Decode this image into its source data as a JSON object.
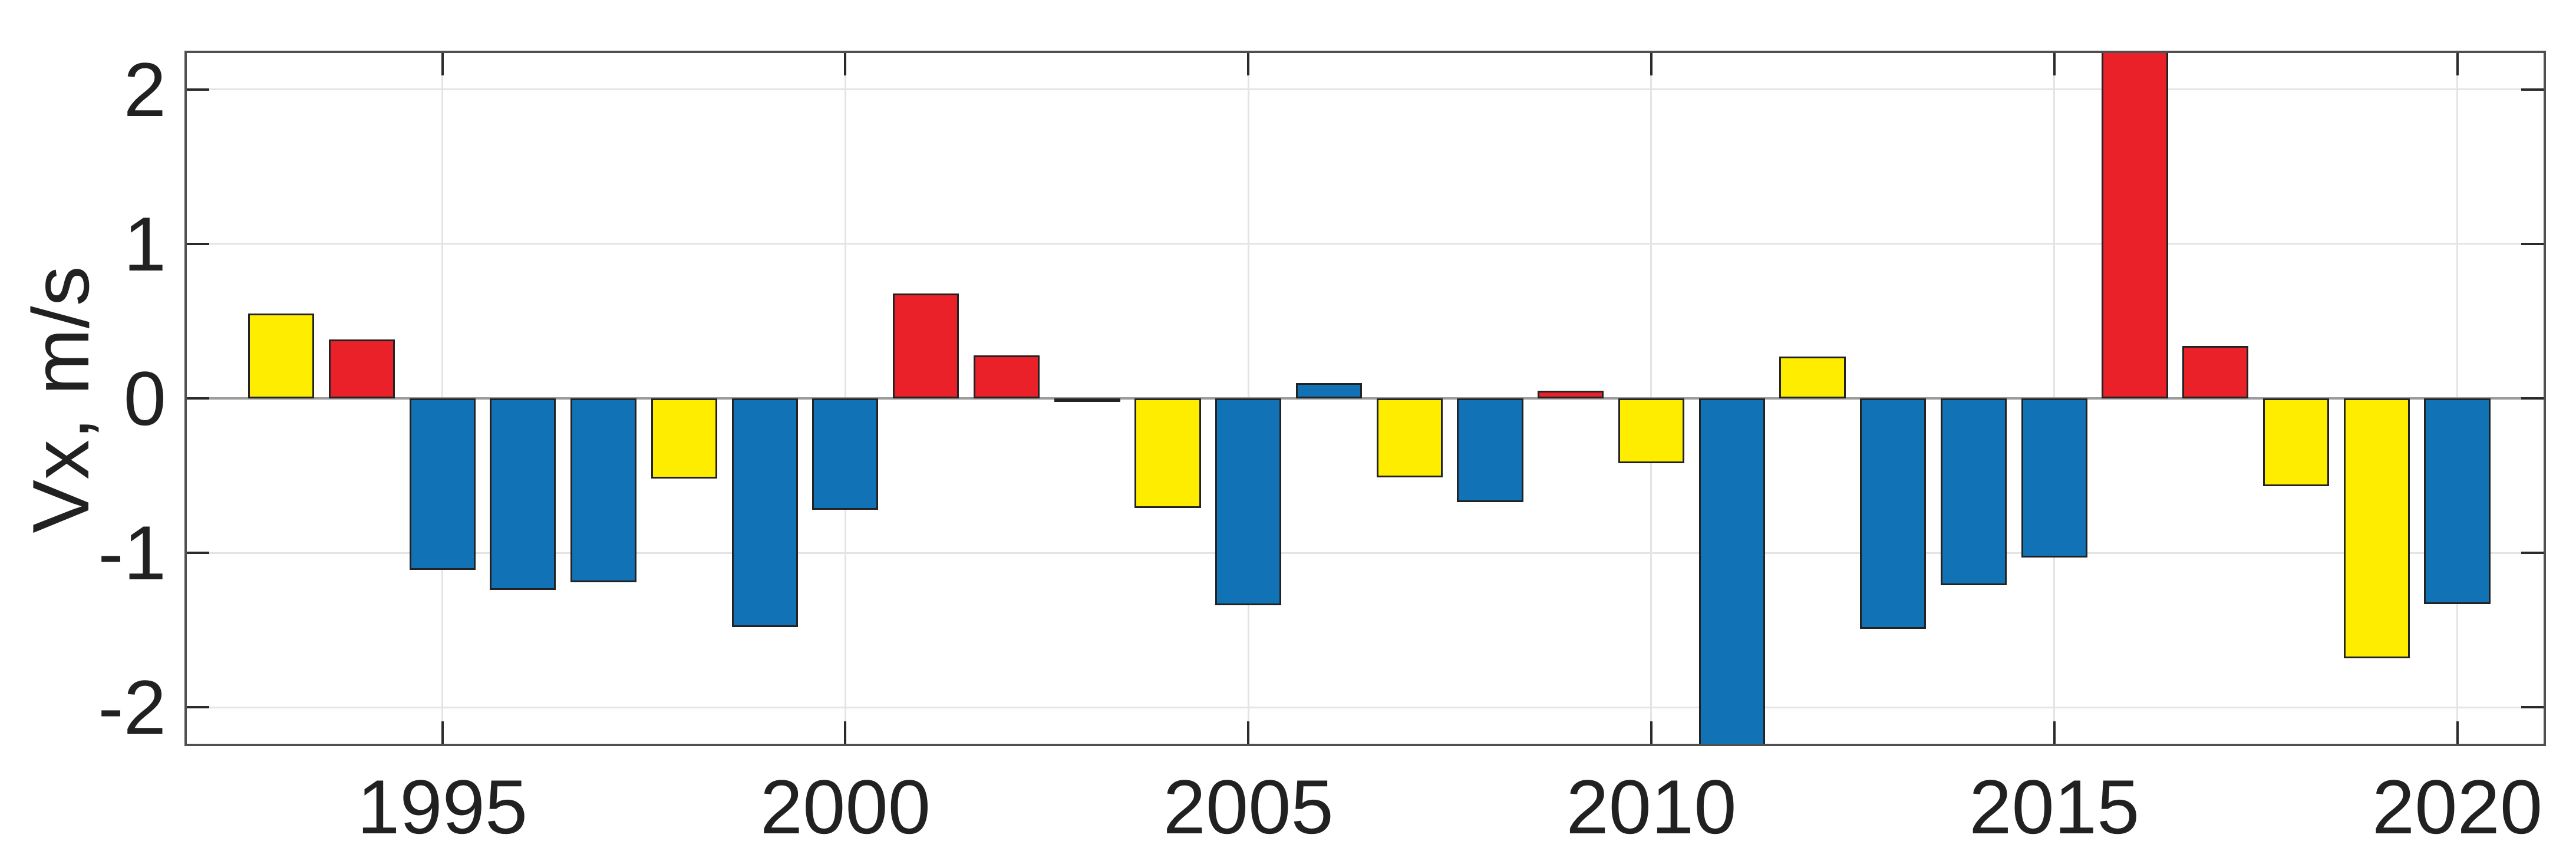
{
  "chart_data": {
    "type": "bar",
    "title": "",
    "xlabel": "",
    "ylabel": "Vx, m/s",
    "x_tick_years": [
      1995,
      2000,
      2005,
      2010,
      2015,
      2020
    ],
    "x_tick_labels": [
      "1995",
      "2000",
      "2005",
      "2010",
      "2015",
      "2020"
    ],
    "y_tick_values": [
      -2,
      -1,
      0,
      1,
      2
    ],
    "y_tick_labels": [
      "-2",
      "-1",
      "0",
      "1",
      "2"
    ],
    "xlim": [
      1991.8,
      2021.1
    ],
    "ylim": [
      -2.25,
      2.25
    ],
    "grid": "on",
    "legend_position": "none",
    "bar_width_years": 0.82,
    "palette": {
      "yellow": "#FFED00",
      "red": "#EA2128",
      "blue": "#1173B6"
    },
    "bars": [
      {
        "year": 1993,
        "value": 0.55,
        "color": "yellow"
      },
      {
        "year": 1994,
        "value": 0.38,
        "color": "red"
      },
      {
        "year": 1995,
        "value": -1.11,
        "color": "blue"
      },
      {
        "year": 1996,
        "value": -1.24,
        "color": "blue"
      },
      {
        "year": 1997,
        "value": -1.19,
        "color": "blue"
      },
      {
        "year": 1998,
        "value": -0.52,
        "color": "yellow"
      },
      {
        "year": 1999,
        "value": -1.48,
        "color": "blue"
      },
      {
        "year": 2000,
        "value": -0.72,
        "color": "blue"
      },
      {
        "year": 2001,
        "value": 0.68,
        "color": "red"
      },
      {
        "year": 2002,
        "value": 0.28,
        "color": "red"
      },
      {
        "year": 2003,
        "value": -0.02,
        "color": "blue"
      },
      {
        "year": 2004,
        "value": -0.71,
        "color": "yellow"
      },
      {
        "year": 2005,
        "value": -1.34,
        "color": "blue"
      },
      {
        "year": 2006,
        "value": 0.1,
        "color": "blue"
      },
      {
        "year": 2007,
        "value": -0.51,
        "color": "yellow"
      },
      {
        "year": 2008,
        "value": -0.67,
        "color": "blue"
      },
      {
        "year": 2009,
        "value": 0.05,
        "color": "red"
      },
      {
        "year": 2010,
        "value": -0.42,
        "color": "yellow"
      },
      {
        "year": 2011,
        "value": -2.4,
        "color": "blue",
        "clipped_at_axis": true
      },
      {
        "year": 2012,
        "value": 0.27,
        "color": "yellow"
      },
      {
        "year": 2013,
        "value": -1.49,
        "color": "blue"
      },
      {
        "year": 2014,
        "value": -1.21,
        "color": "blue"
      },
      {
        "year": 2015,
        "value": -1.03,
        "color": "blue"
      },
      {
        "year": 2016,
        "value": 2.4,
        "color": "red",
        "clipped_at_axis": true
      },
      {
        "year": 2017,
        "value": 0.34,
        "color": "red"
      },
      {
        "year": 2018,
        "value": -0.57,
        "color": "yellow"
      },
      {
        "year": 2019,
        "value": -1.68,
        "color": "yellow"
      },
      {
        "year": 2020,
        "value": -1.33,
        "color": "blue"
      }
    ]
  },
  "style": {
    "background": "#ffffff",
    "axis_border_color": "#4f4f4f",
    "grid_color": "#e4e4e4",
    "zero_baseline_color": "#9b9b9b",
    "tick_mark_color": "#2a2a2a",
    "text_color": "#212121",
    "bar_edge_color": "#222222"
  }
}
